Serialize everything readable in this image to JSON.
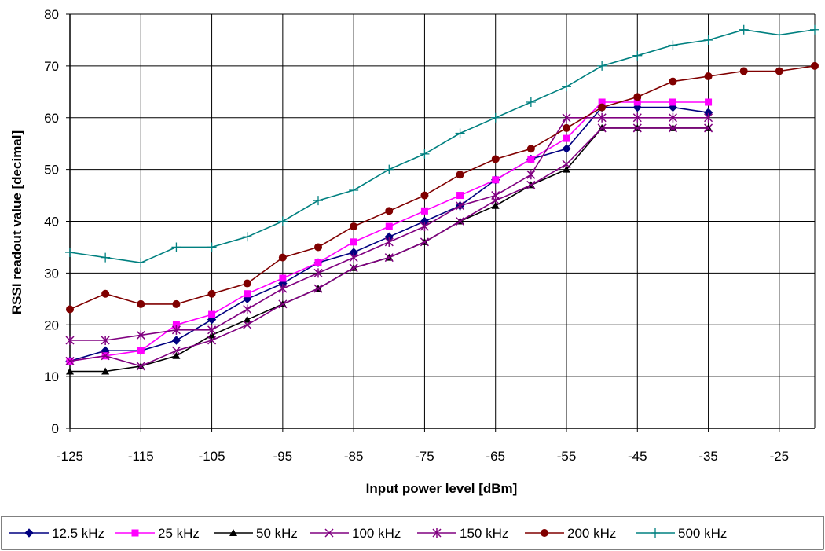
{
  "chart_data": {
    "type": "line",
    "xlabel": "Input power level [dBm]",
    "ylabel": "RSSI readout value [decimal]",
    "xlim": [
      -125,
      -20
    ],
    "ylim": [
      0,
      80
    ],
    "x_ticks": [
      -125,
      -115,
      -105,
      -95,
      -85,
      -75,
      -65,
      -55,
      -45,
      -35,
      -25
    ],
    "x_tick_labels": [
      "-125",
      "-115",
      "-105",
      "-95",
      "-85",
      "-75",
      "-65",
      "-55",
      "-45",
      "-35",
      "-25"
    ],
    "y_ticks": [
      0,
      10,
      20,
      30,
      40,
      50,
      60,
      70,
      80
    ],
    "y_tick_labels": [
      "0",
      "10",
      "20",
      "30",
      "40",
      "50",
      "60",
      "70",
      "80"
    ],
    "grid": true,
    "legend_position": "bottom",
    "series": [
      {
        "name": "12.5 kHz",
        "color": "#000080",
        "marker": "diamond",
        "x": [
          -125,
          -120,
          -115,
          -110,
          -105,
          -100,
          -95,
          -90,
          -85,
          -80,
          -75,
          -70,
          -65,
          -60,
          -55,
          -50,
          -45,
          -40,
          -35
        ],
        "y": [
          13,
          15,
          15,
          17,
          21,
          25,
          28,
          32,
          34,
          37,
          40,
          43,
          48,
          52,
          54,
          62,
          62,
          62,
          61
        ]
      },
      {
        "name": "25 kHz",
        "color": "#ff00ff",
        "marker": "square",
        "x": [
          -125,
          -120,
          -115,
          -110,
          -105,
          -100,
          -95,
          -90,
          -85,
          -80,
          -75,
          -70,
          -65,
          -60,
          -55,
          -50,
          -45,
          -40,
          -35
        ],
        "y": [
          13,
          14,
          15,
          20,
          22,
          26,
          29,
          32,
          36,
          39,
          42,
          45,
          48,
          52,
          56,
          63,
          63,
          63,
          63
        ]
      },
      {
        "name": "50 kHz",
        "color": "#000000",
        "marker": "triangle",
        "x": [
          -125,
          -120,
          -115,
          -110,
          -105,
          -100,
          -95,
          -90,
          -85,
          -80,
          -75,
          -70,
          -65,
          -60,
          -55,
          -50,
          -45,
          -40,
          -35
        ],
        "y": [
          11,
          11,
          12,
          14,
          18,
          21,
          24,
          27,
          31,
          33,
          36,
          40,
          43,
          47,
          50,
          58,
          58,
          58,
          58
        ]
      },
      {
        "name": "100 kHz",
        "color": "#800080",
        "marker": "x",
        "x": [
          -125,
          -120,
          -115,
          -110,
          -105,
          -100,
          -95,
          -90,
          -85,
          -80,
          -75,
          -70,
          -65,
          -60,
          -55,
          -50,
          -45,
          -40,
          -35
        ],
        "y": [
          13,
          14,
          12,
          15,
          17,
          20,
          24,
          27,
          31,
          33,
          36,
          40,
          44,
          47,
          51,
          58,
          58,
          58,
          58
        ]
      },
      {
        "name": "150 kHz",
        "color": "#800080",
        "marker": "asterisk",
        "x": [
          -125,
          -120,
          -115,
          -110,
          -105,
          -100,
          -95,
          -90,
          -85,
          -80,
          -75,
          -70,
          -65,
          -60,
          -55,
          -50,
          -45,
          -40,
          -35
        ],
        "y": [
          17,
          17,
          18,
          19,
          19,
          23,
          27,
          30,
          33,
          36,
          39,
          43,
          45,
          49,
          60,
          60,
          60,
          60,
          60
        ]
      },
      {
        "name": "200 kHz",
        "color": "#800000",
        "marker": "circle",
        "x": [
          -125,
          -120,
          -115,
          -110,
          -105,
          -100,
          -95,
          -90,
          -85,
          -80,
          -75,
          -70,
          -65,
          -60,
          -55,
          -50,
          -45,
          -40,
          -35,
          -30,
          -25,
          -20
        ],
        "y": [
          23,
          26,
          24,
          24,
          26,
          28,
          33,
          35,
          39,
          42,
          45,
          49,
          52,
          54,
          58,
          62,
          64,
          67,
          68,
          69,
          69,
          70
        ]
      },
      {
        "name": "500 kHz",
        "color": "#008080",
        "marker": "plus",
        "x": [
          -125,
          -120,
          -115,
          -110,
          -105,
          -100,
          -95,
          -90,
          -85,
          -80,
          -75,
          -70,
          -65,
          -60,
          -55,
          -50,
          -45,
          -40,
          -35,
          -30,
          -25,
          -20
        ],
        "y": [
          34,
          33,
          32,
          35,
          35,
          37,
          40,
          44,
          46,
          50,
          53,
          57,
          60,
          63,
          66,
          70,
          72,
          74,
          75,
          77,
          76,
          77
        ]
      }
    ]
  }
}
